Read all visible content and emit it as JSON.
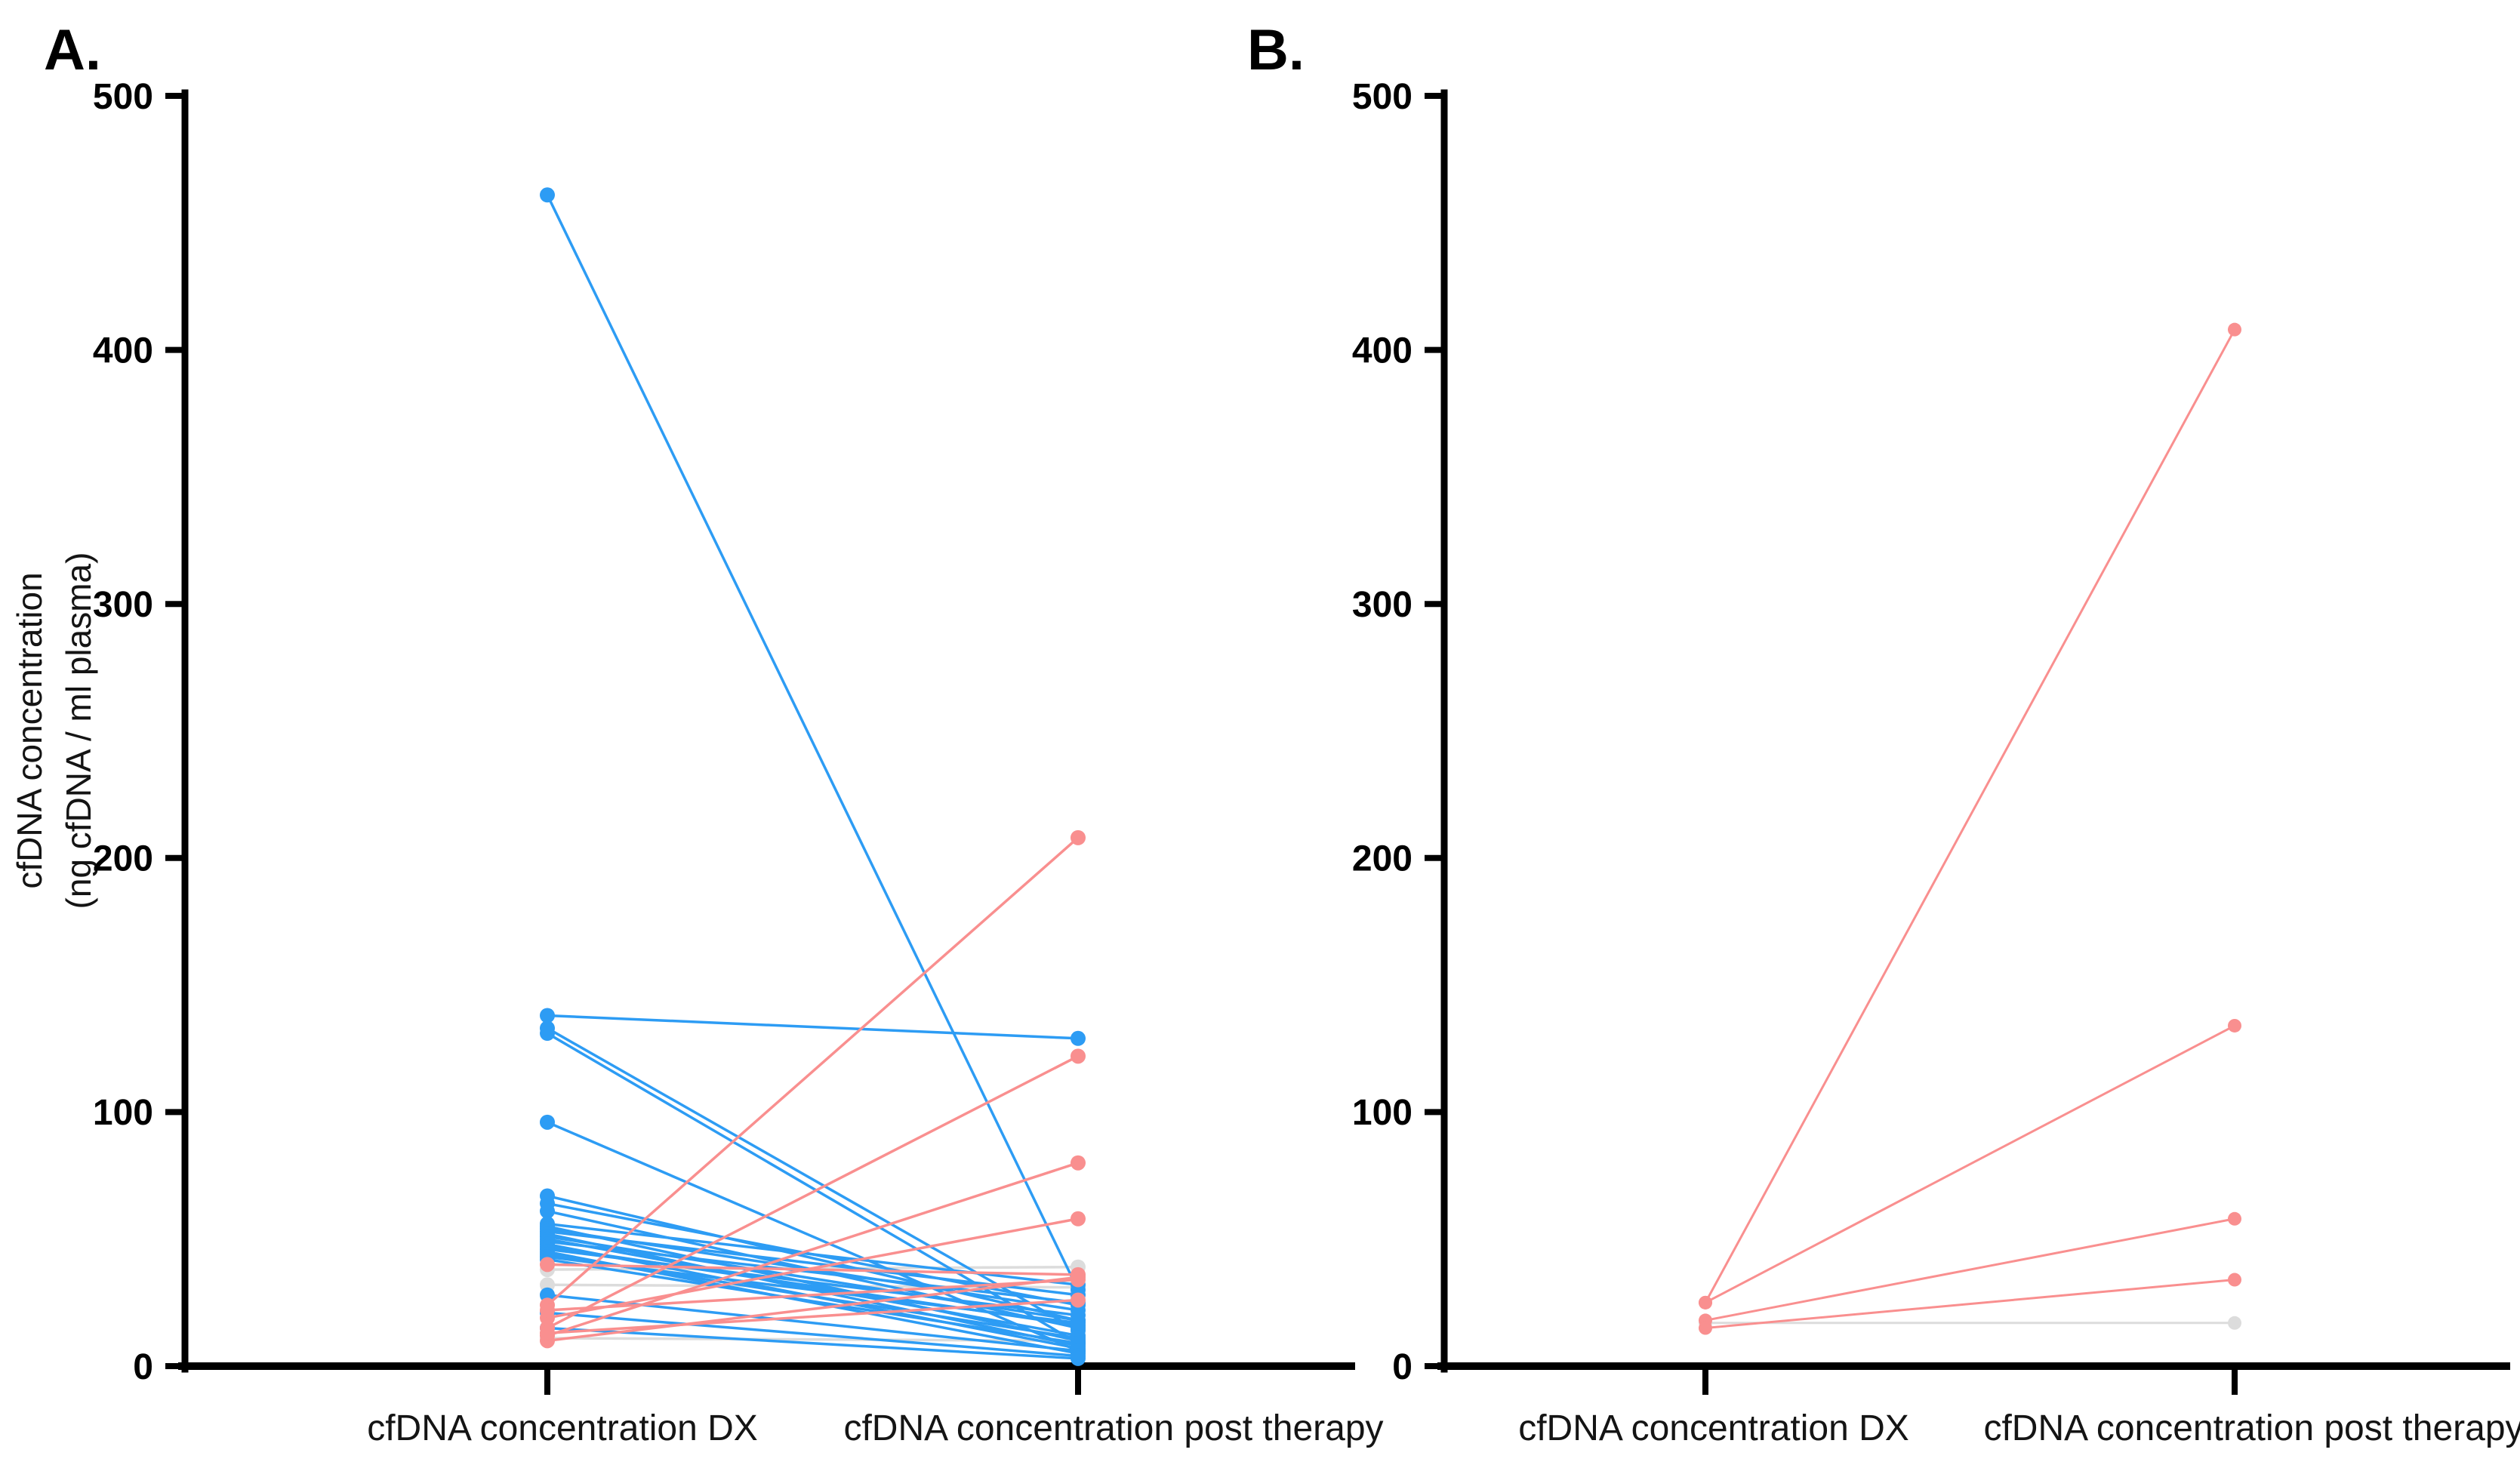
{
  "chart_data": {
    "type": "line",
    "subtype": "paired-before-after-plot",
    "colors": {
      "b": "#2D9CF4",
      "p": "#F98F8F",
      "g": "#DCDCDC",
      "axis": "#000000"
    },
    "panels": [
      {
        "id": "A",
        "label": "A.",
        "ylabel_line1": "cfDNA concentration",
        "ylabel_line2": "(ng cfDNA / ml plasma)",
        "categories": [
          "cfDNA concentration DX",
          "cfDNA concentration post therapy"
        ],
        "ylim": [
          0,
          500
        ],
        "yticks": [
          0,
          100,
          200,
          300,
          400,
          500
        ],
        "pairs": [
          {
            "dx": 461,
            "post": 30,
            "c": "b"
          },
          {
            "dx": 138,
            "post": 129,
            "c": "b"
          },
          {
            "dx": 133,
            "post": 14,
            "c": "b"
          },
          {
            "dx": 131,
            "post": 9,
            "c": "b"
          },
          {
            "dx": 96,
            "post": 6,
            "c": "b"
          },
          {
            "dx": 67,
            "post": 18,
            "c": "b"
          },
          {
            "dx": 64,
            "post": 24,
            "c": "b"
          },
          {
            "dx": 61,
            "post": 15,
            "c": "b"
          },
          {
            "dx": 56,
            "post": 32,
            "c": "b"
          },
          {
            "dx": 55,
            "post": 10,
            "c": "b"
          },
          {
            "dx": 54,
            "post": 22,
            "c": "b"
          },
          {
            "dx": 53,
            "post": 28,
            "c": "b"
          },
          {
            "dx": 52,
            "post": 8,
            "c": "b"
          },
          {
            "dx": 51,
            "post": 18,
            "c": "b"
          },
          {
            "dx": 50,
            "post": 12,
            "c": "b"
          },
          {
            "dx": 49,
            "post": 25,
            "c": "b"
          },
          {
            "dx": 48,
            "post": 7,
            "c": "b"
          },
          {
            "dx": 47,
            "post": 16,
            "c": "b"
          },
          {
            "dx": 46,
            "post": 20,
            "c": "b"
          },
          {
            "dx": 45,
            "post": 5,
            "c": "b"
          },
          {
            "dx": 44,
            "post": 11,
            "c": "b"
          },
          {
            "dx": 43,
            "post": 17,
            "c": "b"
          },
          {
            "dx": 42,
            "post": 9,
            "c": "b"
          },
          {
            "dx": 28,
            "post": 6,
            "c": "b"
          },
          {
            "dx": 21,
            "post": 4,
            "c": "b"
          },
          {
            "dx": 15,
            "post": 3,
            "c": "b"
          },
          {
            "dx": 24,
            "post": 208,
            "c": "p"
          },
          {
            "dx": 15,
            "post": 122,
            "c": "p"
          },
          {
            "dx": 12,
            "post": 80,
            "c": "p"
          },
          {
            "dx": 19,
            "post": 58,
            "c": "p"
          },
          {
            "dx": 40,
            "post": 36,
            "c": "p"
          },
          {
            "dx": 10,
            "post": 35,
            "c": "p"
          },
          {
            "dx": 22,
            "post": 34,
            "c": "p"
          },
          {
            "dx": 13,
            "post": 26,
            "c": "p"
          },
          {
            "dx": 38,
            "post": 39,
            "c": "g"
          },
          {
            "dx": 32,
            "post": 31,
            "c": "g"
          },
          {
            "dx": 11,
            "post": 10,
            "c": "g"
          }
        ]
      },
      {
        "id": "B",
        "label": "B.",
        "categories": [
          "cfDNA concentration DX",
          "cfDNA concentration post therapy"
        ],
        "ylim": [
          0,
          500
        ],
        "yticks": [
          0,
          100,
          200,
          300,
          400,
          500
        ],
        "pairs": [
          {
            "dx": 25,
            "post": 408,
            "c": "p"
          },
          {
            "dx": 25,
            "post": 134,
            "c": "p"
          },
          {
            "dx": 18,
            "post": 58,
            "c": "p"
          },
          {
            "dx": 15,
            "post": 34,
            "c": "p"
          },
          {
            "dx": 17,
            "post": 17,
            "c": "g"
          }
        ]
      }
    ]
  }
}
